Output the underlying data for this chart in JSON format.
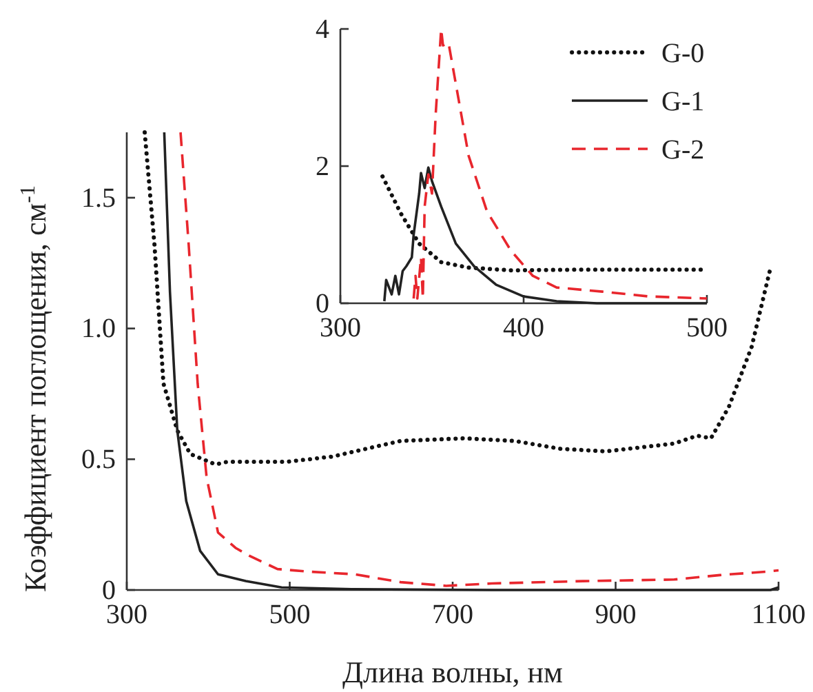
{
  "chart_data": [
    {
      "type": "line",
      "xlabel": "Длина волны, нм",
      "ylabel": "Коэффициент поглощения, см$^{-1}$",
      "xlim": [
        300,
        1100
      ],
      "ylim": [
        0,
        1.75
      ],
      "xticks": [
        300,
        500,
        700,
        900,
        1100
      ],
      "yticks": [
        0,
        0.5,
        {
          "value": 1,
          "label": "1.0"
        },
        1.5
      ],
      "grid": false,
      "series": [
        {
          "color": "#111111",
          "line_style": "dotted",
          "x": [
            322,
            334,
            345,
            362,
            378,
            409,
            423,
            496,
            552,
            636,
            714,
            776,
            832,
            888,
            972,
            1000,
            1017,
            1039,
            1067,
            1090
          ],
          "values": [
            1.75,
            1.32,
            0.79,
            0.61,
            0.52,
            0.48,
            0.49,
            0.49,
            0.51,
            0.57,
            0.58,
            0.57,
            0.54,
            0.53,
            0.56,
            0.59,
            0.58,
            0.7,
            0.93,
            1.23
          ]
        },
        {
          "color": "#222222",
          "line_style": "solid",
          "x": [
            346,
            353,
            362,
            373,
            390,
            412,
            446,
            490,
            580,
            748,
            900,
            1090,
            1100
          ],
          "values": [
            1.75,
            1.14,
            0.61,
            0.34,
            0.15,
            0.06,
            0.034,
            0.01,
            0.003,
            0,
            0,
            0,
            0.01
          ]
        },
        {
          "color": "#e8262d",
          "line_style": "dashed",
          "x": [
            366,
            376,
            387,
            398,
            412,
            434,
            451,
            485,
            524,
            580,
            636,
            692,
            748,
            860,
            972,
            1028,
            1084,
            1100
          ],
          "values": [
            1.75,
            1.32,
            0.79,
            0.43,
            0.22,
            0.16,
            0.13,
            0.08,
            0.07,
            0.06,
            0.03,
            0.016,
            0.025,
            0.034,
            0.04,
            0.057,
            0.07,
            0.075
          ]
        }
      ]
    },
    {
      "type": "line",
      "xlim": [
        300,
        500
      ],
      "ylim": [
        0,
        4
      ],
      "xticks": [
        300,
        400,
        500
      ],
      "yticks": [
        0,
        2,
        4
      ],
      "grid": false,
      "legend": "top right",
      "series": [
        {
          "name": "G-0",
          "color": "#111111",
          "line_style": "dotted",
          "x": [
            323,
            333,
            343,
            355,
            370,
            393,
            430,
            500
          ],
          "values": [
            1.85,
            1.31,
            0.87,
            0.6,
            0.52,
            0.48,
            0.49,
            0.49
          ]
        },
        {
          "name": "G-1",
          "color": "#222222",
          "line_style": "solid",
          "x": [
            324,
            325,
            328,
            330,
            332,
            334,
            336,
            339,
            340,
            343,
            344,
            346,
            348,
            350,
            355,
            363,
            373,
            385,
            400,
            418,
            440,
            500
          ],
          "values": [
            0.03,
            0.34,
            0.13,
            0.4,
            0.13,
            0.47,
            0.54,
            0.67,
            1.0,
            1.6,
            1.9,
            1.68,
            1.98,
            1.78,
            1.41,
            0.87,
            0.54,
            0.27,
            0.1,
            0.03,
            0,
            0
          ]
        },
        {
          "name": "G-2",
          "color": "#e8262d",
          "line_style": "dashed",
          "x": [
            340,
            341,
            342,
            344,
            345,
            346,
            348,
            350,
            352,
            355,
            356,
            359,
            363,
            370,
            380,
            393,
            405,
            418,
            443,
            468,
            500
          ],
          "values": [
            0.07,
            0.4,
            0.07,
            0.67,
            0.07,
            1.41,
            1.88,
            1.6,
            2.75,
            4.0,
            3.76,
            3.8,
            3.2,
            2.15,
            1.34,
            0.77,
            0.4,
            0.23,
            0.17,
            0.1,
            0.07
          ]
        }
      ]
    }
  ]
}
